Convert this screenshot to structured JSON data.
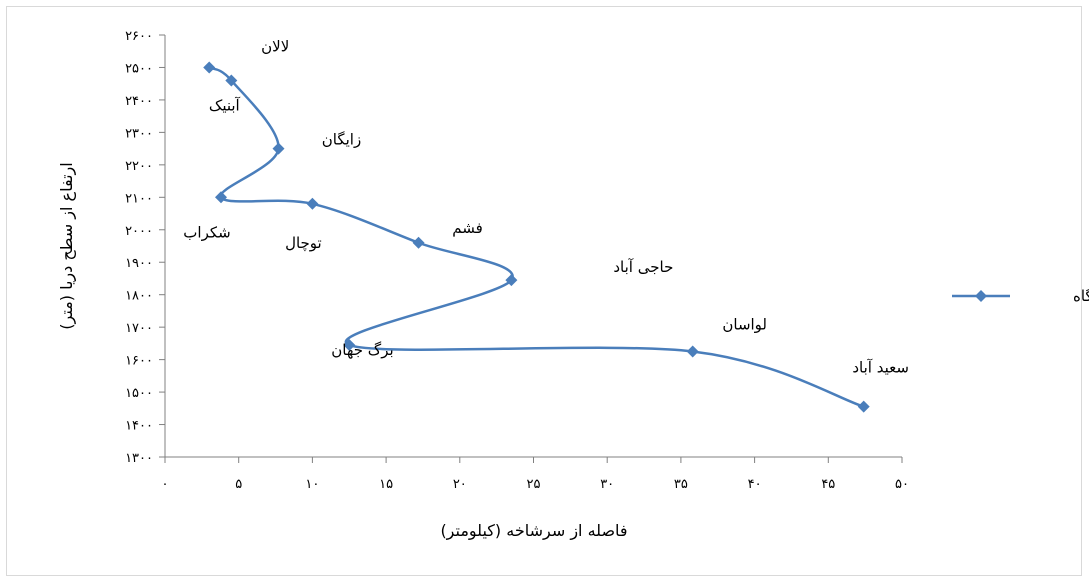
{
  "chart_data": {
    "type": "line",
    "xlabel": "فاصله از سرشاخه (کیلومتر)",
    "ylabel": "ارتفاع از سطح دریا (متر)",
    "xlim": [
      0,
      50
    ],
    "ylim": [
      1300,
      2600
    ],
    "x_ticks": [
      {
        "value": 0,
        "label": "۰"
      },
      {
        "value": 5,
        "label": "۵"
      },
      {
        "value": 10,
        "label": "۱۰"
      },
      {
        "value": 15,
        "label": "۱۵"
      },
      {
        "value": 20,
        "label": "۲۰"
      },
      {
        "value": 25,
        "label": "۲۵"
      },
      {
        "value": 30,
        "label": "۳۰"
      },
      {
        "value": 35,
        "label": "۳۵"
      },
      {
        "value": 40,
        "label": "۴۰"
      },
      {
        "value": 45,
        "label": "۴۵"
      },
      {
        "value": 50,
        "label": "۵۰"
      }
    ],
    "y_ticks": [
      {
        "value": 1300,
        "label": "۱۳۰۰"
      },
      {
        "value": 1400,
        "label": "۱۴۰۰"
      },
      {
        "value": 1500,
        "label": "۱۵۰۰"
      },
      {
        "value": 1600,
        "label": "۱۶۰۰"
      },
      {
        "value": 1700,
        "label": "۱۷۰۰"
      },
      {
        "value": 1800,
        "label": "۱۸۰۰"
      },
      {
        "value": 1900,
        "label": "۱۹۰۰"
      },
      {
        "value": 2000,
        "label": "۲۰۰۰"
      },
      {
        "value": 2100,
        "label": "۲۱۰۰"
      },
      {
        "value": 2200,
        "label": "۲۲۰۰"
      },
      {
        "value": 2300,
        "label": "۲۳۰۰"
      },
      {
        "value": 2400,
        "label": "۲۴۰۰"
      },
      {
        "value": 2500,
        "label": "۲۵۰۰"
      },
      {
        "value": 2600,
        "label": "۲۶۰۰"
      }
    ],
    "grid": false,
    "legend_position": "right",
    "series": [
      {
        "name": "ایستگاه",
        "color": "#4a7ebb",
        "marker": "diamond",
        "smooth": true,
        "points": [
          {
            "x": 3,
            "y": 2500,
            "label": "لالان"
          },
          {
            "x": 4.5,
            "y": 2460,
            "label": "آبنیک"
          },
          {
            "x": 7.7,
            "y": 2250,
            "label": "زایگان"
          },
          {
            "x": 3.8,
            "y": 2100,
            "label": "شکراب"
          },
          {
            "x": 10,
            "y": 2080,
            "label": "توچال"
          },
          {
            "x": 17.2,
            "y": 1960,
            "label": "فشم"
          },
          {
            "x": 23.5,
            "y": 1845,
            "label": "حاجی آباد"
          },
          {
            "x": 12.5,
            "y": 1645,
            "label": "برگ جهان"
          },
          {
            "x": 35.8,
            "y": 1625,
            "label": "لواسان"
          },
          {
            "x": 47.4,
            "y": 1455,
            "label": "سعید آباد"
          }
        ]
      }
    ]
  }
}
